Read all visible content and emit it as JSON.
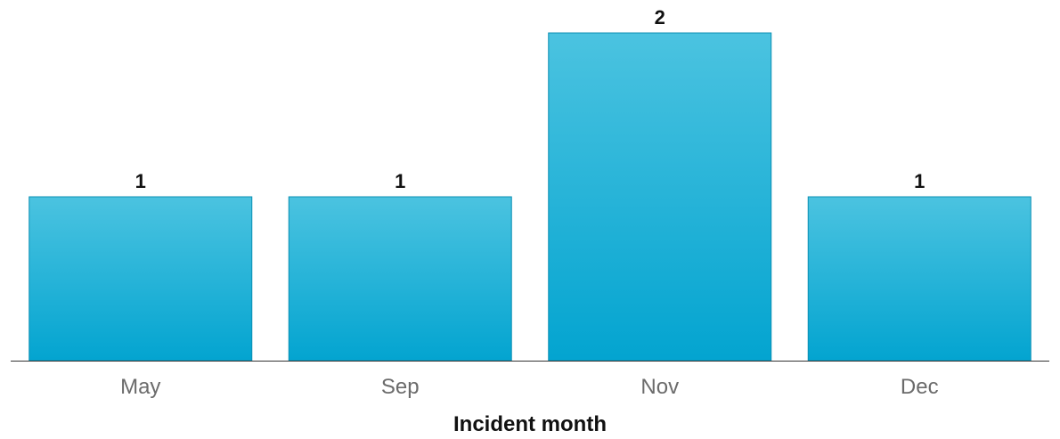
{
  "chart_data": {
    "type": "bar",
    "categories": [
      "May",
      "Sep",
      "Nov",
      "Dec"
    ],
    "values": [
      1,
      1,
      2,
      1
    ],
    "xlabel": "Incident month",
    "ylabel": "",
    "ylim": [
      0,
      2
    ],
    "grid": false,
    "data_labels": true,
    "colors": {
      "bar_top": "#4bc3e0",
      "bar_bottom": "#03a4d0",
      "bar_stroke": "#0b8fb3",
      "axis": "#333333",
      "tick_text": "#6b6b6b",
      "label_text": "#111111"
    }
  }
}
